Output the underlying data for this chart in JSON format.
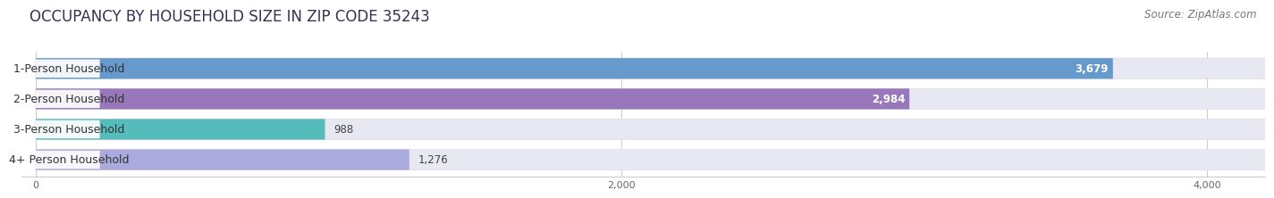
{
  "title": "OCCUPANCY BY HOUSEHOLD SIZE IN ZIP CODE 35243",
  "source": "Source: ZipAtlas.com",
  "categories": [
    "1-Person Household",
    "2-Person Household",
    "3-Person Household",
    "4+ Person Household"
  ],
  "values": [
    3679,
    2984,
    988,
    1276
  ],
  "bar_colors": [
    "#6699CC",
    "#9977BB",
    "#55BBBB",
    "#AAAADD"
  ],
  "bar_bg_color": "#E8E8F2",
  "label_bg_color": "#FFFFFF",
  "xmin": 0,
  "xmax": 4200,
  "xticks": [
    0,
    2000,
    4000
  ],
  "title_fontsize": 12,
  "source_fontsize": 8.5,
  "label_fontsize": 9,
  "value_fontsize": 8.5,
  "background_color": "#FFFFFF",
  "grid_color": "#CCCCDD"
}
